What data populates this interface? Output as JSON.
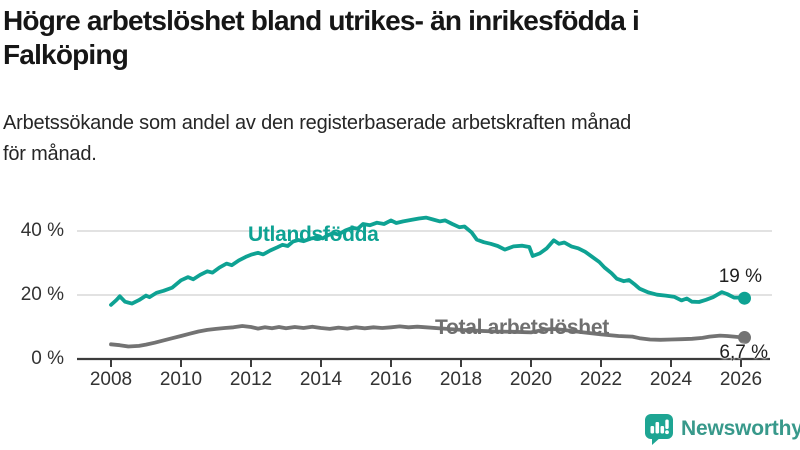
{
  "header": {
    "title_lines": [
      "Högre arbetslöshet bland utrikes- än inrikesfödda i",
      "Falköping"
    ],
    "subtitle_lines": [
      "Arbetssökande som andel av den registerbaserade arbetskraften månad",
      "för månad."
    ]
  },
  "chart_data": {
    "type": "line",
    "title": "Högre arbetslöshet bland utrikes- än inrikesfödda i Falköping",
    "subtitle": "Arbetssökande som andel av den registerbaserade arbetskraften månad för månad.",
    "xlabel": "",
    "ylabel": "",
    "x_axis": {
      "range": [
        2008,
        2026.2
      ],
      "ticks": [
        2008,
        2010,
        2012,
        2014,
        2016,
        2018,
        2020,
        2022,
        2024,
        2026
      ],
      "tick_labels": [
        "2008",
        "2010",
        "2012",
        "2014",
        "2016",
        "2018",
        "2020",
        "2022",
        "2024",
        "2026"
      ]
    },
    "y_axis": {
      "range": [
        0,
        46
      ],
      "ticks": [
        0,
        20,
        40
      ],
      "tick_labels": [
        "0 %",
        "20 %",
        "40 %"
      ],
      "grid": true
    },
    "legend_position": "inline-labels",
    "style": {
      "grid_color": "#d8d8d8",
      "axis_color": "#3c3c3c",
      "background": "#ffffff"
    },
    "series": [
      {
        "name": "Utlandsfödda",
        "color": "#0ea293",
        "last_value": 19,
        "end_label": "19 %",
        "points": [
          [
            2008.0,
            16.9
          ],
          [
            2008.15,
            18.4
          ],
          [
            2008.25,
            19.6
          ],
          [
            2008.4,
            17.9
          ],
          [
            2008.6,
            17.3
          ],
          [
            2008.8,
            18.4
          ],
          [
            2009.0,
            19.8
          ],
          [
            2009.1,
            19.3
          ],
          [
            2009.3,
            20.7
          ],
          [
            2009.5,
            21.3
          ],
          [
            2009.75,
            22.3
          ],
          [
            2010.0,
            24.6
          ],
          [
            2010.2,
            25.6
          ],
          [
            2010.35,
            24.9
          ],
          [
            2010.55,
            26.3
          ],
          [
            2010.75,
            27.4
          ],
          [
            2010.9,
            27.0
          ],
          [
            2011.1,
            28.6
          ],
          [
            2011.3,
            29.8
          ],
          [
            2011.45,
            29.3
          ],
          [
            2011.65,
            30.8
          ],
          [
            2011.85,
            31.9
          ],
          [
            2012.0,
            32.6
          ],
          [
            2012.2,
            33.2
          ],
          [
            2012.35,
            32.7
          ],
          [
            2012.55,
            33.9
          ],
          [
            2012.75,
            34.9
          ],
          [
            2012.9,
            35.7
          ],
          [
            2013.05,
            35.3
          ],
          [
            2013.2,
            36.7
          ],
          [
            2013.35,
            37.2
          ],
          [
            2013.5,
            36.8
          ],
          [
            2013.7,
            37.6
          ],
          [
            2013.9,
            38.1
          ],
          [
            2014.05,
            37.7
          ],
          [
            2014.2,
            38.7
          ],
          [
            2014.35,
            39.3
          ],
          [
            2014.5,
            38.9
          ],
          [
            2014.7,
            40.2
          ],
          [
            2014.9,
            41.0
          ],
          [
            2015.05,
            40.7
          ],
          [
            2015.2,
            42.2
          ],
          [
            2015.4,
            41.8
          ],
          [
            2015.6,
            42.6
          ],
          [
            2015.8,
            42.2
          ],
          [
            2016.0,
            43.3
          ],
          [
            2016.15,
            42.5
          ],
          [
            2016.35,
            43.0
          ],
          [
            2016.6,
            43.5
          ],
          [
            2016.8,
            43.9
          ],
          [
            2017.0,
            44.2
          ],
          [
            2017.2,
            43.6
          ],
          [
            2017.4,
            43.0
          ],
          [
            2017.55,
            43.3
          ],
          [
            2017.75,
            42.2
          ],
          [
            2017.95,
            41.2
          ],
          [
            2018.1,
            41.4
          ],
          [
            2018.3,
            39.6
          ],
          [
            2018.45,
            37.3
          ],
          [
            2018.65,
            36.5
          ],
          [
            2018.85,
            36.0
          ],
          [
            2019.05,
            35.3
          ],
          [
            2019.25,
            34.2
          ],
          [
            2019.5,
            35.2
          ],
          [
            2019.75,
            35.4
          ],
          [
            2019.95,
            35.0
          ],
          [
            2020.05,
            32.2
          ],
          [
            2020.25,
            33.0
          ],
          [
            2020.45,
            34.6
          ],
          [
            2020.65,
            37.1
          ],
          [
            2020.8,
            36.0
          ],
          [
            2020.95,
            36.4
          ],
          [
            2021.15,
            35.2
          ],
          [
            2021.35,
            34.6
          ],
          [
            2021.55,
            33.5
          ],
          [
            2021.75,
            31.9
          ],
          [
            2021.95,
            30.3
          ],
          [
            2022.1,
            28.6
          ],
          [
            2022.3,
            26.8
          ],
          [
            2022.45,
            25.1
          ],
          [
            2022.65,
            24.3
          ],
          [
            2022.8,
            24.7
          ],
          [
            2022.95,
            23.4
          ],
          [
            2023.1,
            22.0
          ],
          [
            2023.35,
            20.8
          ],
          [
            2023.6,
            20.1
          ],
          [
            2023.85,
            19.8
          ],
          [
            2024.1,
            19.4
          ],
          [
            2024.3,
            18.3
          ],
          [
            2024.45,
            18.9
          ],
          [
            2024.6,
            17.9
          ],
          [
            2024.8,
            17.8
          ],
          [
            2025.0,
            18.5
          ],
          [
            2025.2,
            19.3
          ],
          [
            2025.45,
            20.9
          ],
          [
            2025.6,
            20.3
          ],
          [
            2025.8,
            19.2
          ],
          [
            2026.0,
            19.2
          ],
          [
            2026.1,
            19.0
          ]
        ]
      },
      {
        "name": "Total arbetslöshet",
        "color": "#737373",
        "last_value": 6.7,
        "end_label": "6,7 %",
        "points": [
          [
            2008.0,
            4.6
          ],
          [
            2008.25,
            4.3
          ],
          [
            2008.5,
            3.9
          ],
          [
            2008.8,
            4.1
          ],
          [
            2009.0,
            4.5
          ],
          [
            2009.25,
            5.1
          ],
          [
            2009.5,
            5.8
          ],
          [
            2009.75,
            6.5
          ],
          [
            2010.0,
            7.2
          ],
          [
            2010.25,
            7.9
          ],
          [
            2010.5,
            8.6
          ],
          [
            2010.75,
            9.1
          ],
          [
            2011.0,
            9.4
          ],
          [
            2011.25,
            9.7
          ],
          [
            2011.5,
            9.9
          ],
          [
            2011.75,
            10.3
          ],
          [
            2012.0,
            10.0
          ],
          [
            2012.2,
            9.5
          ],
          [
            2012.4,
            9.9
          ],
          [
            2012.6,
            9.6
          ],
          [
            2012.8,
            10.0
          ],
          [
            2013.0,
            9.6
          ],
          [
            2013.25,
            10.0
          ],
          [
            2013.5,
            9.7
          ],
          [
            2013.75,
            10.1
          ],
          [
            2014.0,
            9.7
          ],
          [
            2014.25,
            9.4
          ],
          [
            2014.5,
            9.8
          ],
          [
            2014.75,
            9.5
          ],
          [
            2015.0,
            9.9
          ],
          [
            2015.25,
            9.6
          ],
          [
            2015.5,
            9.9
          ],
          [
            2015.75,
            9.7
          ],
          [
            2016.0,
            9.9
          ],
          [
            2016.25,
            10.2
          ],
          [
            2016.5,
            9.9
          ],
          [
            2016.75,
            10.1
          ],
          [
            2017.0,
            9.9
          ],
          [
            2017.5,
            9.5
          ],
          [
            2018.0,
            9.1
          ],
          [
            2018.5,
            8.8
          ],
          [
            2019.0,
            8.6
          ],
          [
            2019.5,
            8.5
          ],
          [
            2020.0,
            8.3
          ],
          [
            2020.3,
            9.0
          ],
          [
            2020.6,
            9.4
          ],
          [
            2021.0,
            9.0
          ],
          [
            2021.5,
            8.3
          ],
          [
            2022.0,
            7.7
          ],
          [
            2022.5,
            7.2
          ],
          [
            2022.9,
            7.0
          ],
          [
            2023.1,
            6.5
          ],
          [
            2023.4,
            6.1
          ],
          [
            2023.7,
            6.0
          ],
          [
            2024.0,
            6.1
          ],
          [
            2024.3,
            6.2
          ],
          [
            2024.6,
            6.3
          ],
          [
            2024.9,
            6.6
          ],
          [
            2025.1,
            7.0
          ],
          [
            2025.4,
            7.3
          ],
          [
            2025.6,
            7.2
          ],
          [
            2025.8,
            7.0
          ],
          [
            2026.1,
            6.7
          ]
        ]
      }
    ]
  },
  "footer": {
    "brand": "Newsworthy",
    "brand_color": "#38998b",
    "icon": "newsworthy-bar-chart-bubble-icon",
    "icon_color": "#1ea593"
  }
}
